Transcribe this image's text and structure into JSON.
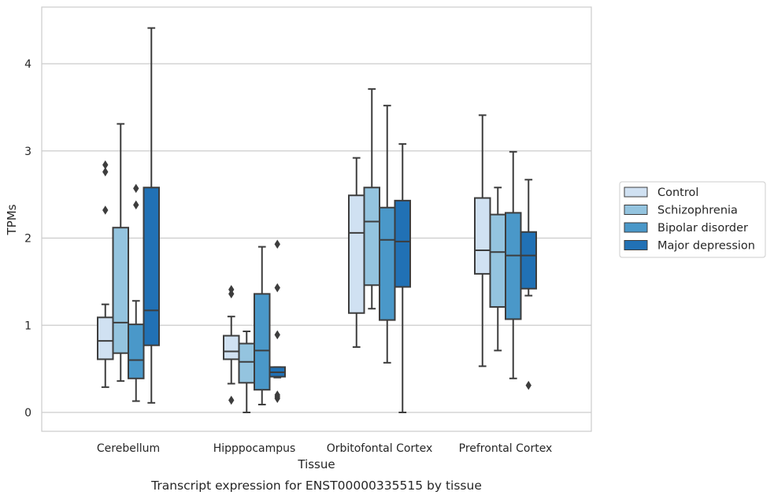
{
  "chart_data": {
    "type": "box",
    "caption": "Transcript expression for ENST00000335515 by tissue",
    "xlabel": "Tissue",
    "ylabel": "TPMs",
    "ylim": [
      -0.2,
      4.65
    ],
    "yticks": [
      0,
      1,
      2,
      3,
      4
    ],
    "grid": true,
    "legend_position": "right",
    "categories": [
      "Cerebellum",
      "Hipppocampus",
      "Orbitofontal Cortex",
      "Prefrontal Cortex"
    ],
    "series": [
      {
        "name": "Control",
        "color": "#d0e1f2",
        "boxes": [
          {
            "whislo": 0.29,
            "q1": 0.61,
            "med": 0.82,
            "q3": 1.09,
            "whishi": 1.24,
            "fliers": [
              2.32,
              2.76,
              2.84
            ]
          },
          {
            "whislo": 0.33,
            "q1": 0.61,
            "med": 0.7,
            "q3": 0.88,
            "whishi": 1.1,
            "fliers": [
              0.14,
              1.36,
              1.41
            ]
          },
          {
            "whislo": 0.75,
            "q1": 1.14,
            "med": 2.06,
            "q3": 2.49,
            "whishi": 2.92,
            "fliers": []
          },
          {
            "whislo": 0.53,
            "q1": 1.59,
            "med": 1.86,
            "q3": 2.46,
            "whishi": 3.41,
            "fliers": []
          }
        ]
      },
      {
        "name": "Schizophrenia",
        "color": "#94c4df",
        "boxes": [
          {
            "whislo": 0.36,
            "q1": 0.68,
            "med": 1.03,
            "q3": 2.12,
            "whishi": 3.31,
            "fliers": []
          },
          {
            "whislo": 0.0,
            "q1": 0.34,
            "med": 0.58,
            "q3": 0.79,
            "whishi": 0.93,
            "fliers": []
          },
          {
            "whislo": 1.19,
            "q1": 1.46,
            "med": 2.19,
            "q3": 2.58,
            "whishi": 3.71,
            "fliers": []
          },
          {
            "whislo": 0.71,
            "q1": 1.21,
            "med": 1.84,
            "q3": 2.27,
            "whishi": 2.58,
            "fliers": []
          }
        ]
      },
      {
        "name": "Bipolar disorder",
        "color": "#4a98c9",
        "boxes": [
          {
            "whislo": 0.13,
            "q1": 0.39,
            "med": 0.6,
            "q3": 1.01,
            "whishi": 1.28,
            "fliers": [
              2.38,
              2.57
            ]
          },
          {
            "whislo": 0.09,
            "q1": 0.26,
            "med": 0.71,
            "q3": 1.36,
            "whishi": 1.9,
            "fliers": []
          },
          {
            "whislo": 0.57,
            "q1": 1.06,
            "med": 1.98,
            "q3": 2.35,
            "whishi": 3.52,
            "fliers": []
          },
          {
            "whislo": 0.39,
            "q1": 1.07,
            "med": 1.8,
            "q3": 2.29,
            "whishi": 2.99,
            "fliers": []
          }
        ]
      },
      {
        "name": "Major depression",
        "color": "#2171b5",
        "boxes": [
          {
            "whislo": 0.11,
            "q1": 0.77,
            "med": 1.17,
            "q3": 2.58,
            "whishi": 4.41,
            "fliers": []
          },
          {
            "whislo": 0.4,
            "q1": 0.41,
            "med": 0.46,
            "q3": 0.52,
            "whishi": 0.52,
            "fliers": [
              0.16,
              0.18,
              0.2,
              0.89,
              1.43,
              1.93
            ]
          },
          {
            "whislo": 0.0,
            "q1": 1.44,
            "med": 1.96,
            "q3": 2.43,
            "whishi": 3.08,
            "fliers": []
          },
          {
            "whislo": 1.34,
            "q1": 1.42,
            "med": 1.8,
            "q3": 2.07,
            "whishi": 2.67,
            "fliers": [
              0.31
            ]
          }
        ]
      }
    ]
  }
}
